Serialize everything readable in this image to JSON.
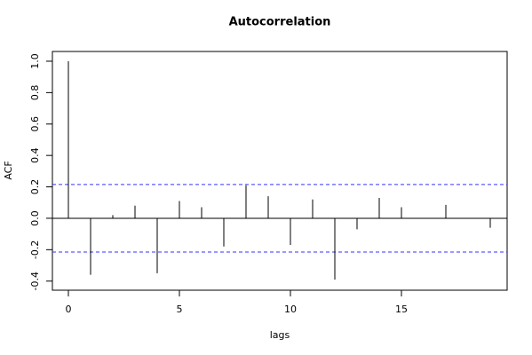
{
  "chart_data": {
    "type": "acf",
    "title": "Autocorrelation",
    "x_label": "lags",
    "y_label": "ACF",
    "x": [
      0,
      1,
      2,
      3,
      4,
      5,
      6,
      7,
      8,
      9,
      10,
      11,
      12,
      13,
      14,
      15,
      16,
      17,
      18,
      19
    ],
    "values": [
      1.0,
      -0.36,
      0.02,
      0.08,
      -0.35,
      0.11,
      0.07,
      -0.18,
      0.21,
      0.14,
      -0.17,
      0.12,
      -0.39,
      -0.07,
      0.13,
      0.07,
      0.0,
      0.085,
      0.0,
      -0.06
    ],
    "color": "#000000",
    "conf_limits": [
      0.215,
      -0.215
    ],
    "conf_color": "#3333ff",
    "xlim": [
      -0.72,
      19.76
    ],
    "xticks": [
      0,
      5,
      10,
      15
    ],
    "ylim": [
      -0.458,
      1.062
    ],
    "yticks": [
      -0.4,
      -0.2,
      {
        "value": 0,
        "label": "0.0"
      },
      0.2,
      0.4,
      0.6,
      0.8,
      {
        "value": 1,
        "label": "1.0"
      }
    ]
  }
}
